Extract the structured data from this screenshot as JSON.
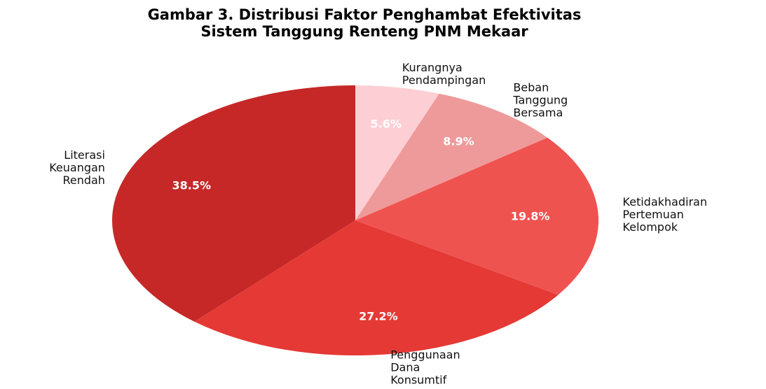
{
  "chart_data": {
    "type": "pie",
    "title": [
      "Gambar 3. Distribusi Faktor Penghambat Efektivitas",
      "Sistem Tanggung Renteng PNM Mekaar"
    ],
    "categories": [
      "Kurangnya Pendampingan",
      "Beban Tanggung Bersama",
      "Ketidakhadiran Pertemuan Kelompok",
      "Penggunaan Dana Konsumtif",
      "Literasi Keuangan Rendah"
    ],
    "values": [
      5.6,
      8.9,
      19.8,
      27.2,
      38.5
    ],
    "value_labels": [
      "5.6%",
      "8.9%",
      "19.8%",
      "27.2%",
      "38.5%"
    ],
    "colors": [
      "#fdcfd4",
      "#ee9a9a",
      "#ef5350",
      "#e53935",
      "#c62828"
    ]
  }
}
